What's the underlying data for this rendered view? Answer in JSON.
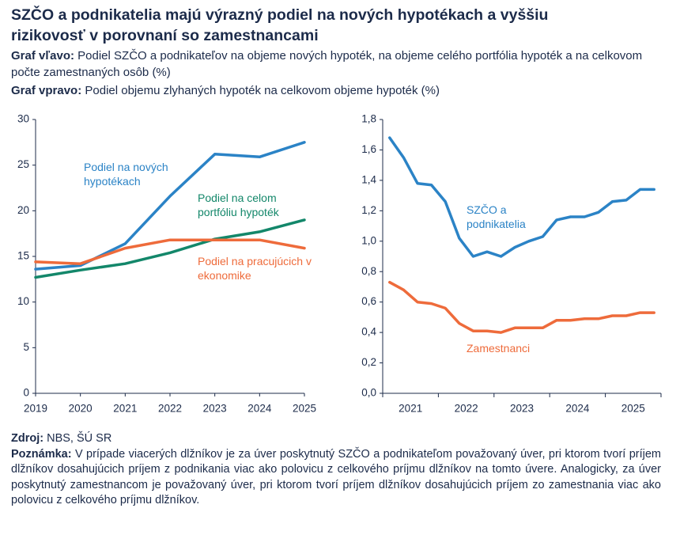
{
  "header": {
    "title": "SZČO a podnikatelia majú výrazný podiel na nových hypotékach a vyššiu rizikovosť v porovnaní so zamestnancami",
    "subtitles": [
      {
        "label": "Graf vľavo:",
        "text": "Podiel SZČO a podnikateľov na objeme nových hypoték, na objeme celého portfólia hypoték a na celkovom počte zamestnaných osôb (%)"
      },
      {
        "label": "Graf vpravo:",
        "text": "Podiel objemu zlyhaných hypoték na celkovom objeme hypoték (%)"
      }
    ]
  },
  "chart_data": [
    {
      "type": "line",
      "x": [
        2019,
        2020,
        2021,
        2022,
        2023,
        2024,
        2025
      ],
      "xlim": [
        2019,
        2025
      ],
      "xticks": [
        2019,
        2020,
        2021,
        2022,
        2023,
        2024,
        2025
      ],
      "ylim": [
        0,
        30
      ],
      "yticks": [
        0,
        5,
        10,
        15,
        20,
        25,
        30
      ],
      "series": [
        {
          "name": "Podiel na nových hypotékach",
          "color": "#2b83c6",
          "values": [
            13.6,
            14.0,
            16.4,
            21.6,
            26.2,
            25.9,
            27.5
          ]
        },
        {
          "name": "Podiel na celom portfóliu hypoték",
          "color": "#13876a",
          "values": [
            12.7,
            13.5,
            14.2,
            15.4,
            16.9,
            17.7,
            19.0
          ]
        },
        {
          "name": "Podiel na pracujúcich v ekonomike",
          "color": "#ee6b3b",
          "values": [
            14.4,
            14.2,
            15.9,
            16.8,
            16.8,
            16.8,
            15.9
          ]
        }
      ]
    },
    {
      "type": "line",
      "categories": [
        null,
        "2021",
        null,
        null,
        null,
        "2022",
        null,
        null,
        null,
        "2023",
        null,
        null,
        null,
        "2024",
        null,
        null,
        null,
        "2025",
        null,
        null
      ],
      "ylim": [
        0,
        1.8
      ],
      "yticks": [
        {
          "value": 0,
          "label": "0,0"
        },
        {
          "value": 0.2,
          "label": "0,2"
        },
        {
          "value": 0.4,
          "label": "0,4"
        },
        {
          "value": 0.6,
          "label": "0,6"
        },
        {
          "value": 0.8,
          "label": "0,8"
        },
        {
          "value": 1.0,
          "label": "1,0"
        },
        {
          "value": 1.2,
          "label": "1,2"
        },
        {
          "value": 1.4,
          "label": "1,4"
        },
        {
          "value": 1.6,
          "label": "1,6"
        },
        {
          "value": 1.8,
          "label": "1,8"
        }
      ],
      "series": [
        {
          "name": "SZČO a podnikatelia",
          "color": "#2b83c6",
          "values": [
            1.68,
            1.55,
            1.38,
            1.37,
            1.26,
            1.02,
            0.9,
            0.93,
            0.9,
            0.96,
            1.0,
            1.03,
            1.14,
            1.16,
            1.16,
            1.19,
            1.26,
            1.27,
            1.34,
            1.34
          ]
        },
        {
          "name": "Zamestnanci",
          "color": "#ee6b3b",
          "values": [
            0.73,
            0.68,
            0.6,
            0.59,
            0.56,
            0.46,
            0.41,
            0.41,
            0.4,
            0.43,
            0.43,
            0.43,
            0.48,
            0.48,
            0.49,
            0.49,
            0.51,
            0.51,
            0.53,
            0.53
          ]
        }
      ]
    }
  ],
  "footer": {
    "source": {
      "label": "Zdroj:",
      "text": "NBS, ŠÚ SR"
    },
    "note": {
      "label": "Poznámka:",
      "text": "V prípade viacerých dlžníkov je za úver poskytnutý SZČO a podnikateľom považovaný úver, pri ktorom tvorí príjem dlžníkov dosahujúcich príjem z podnikania viac ako polovicu z celkového príjmu dlžníkov na tomto úvere. Analogicky, za úver poskytnutý zamestnancom je považovaný úver, pri ktorom tvorí príjem dlžníkov dosahujúcich príjem zo zamestnania viac ako polovicu z celkového príjmu dlžníkov."
    }
  }
}
